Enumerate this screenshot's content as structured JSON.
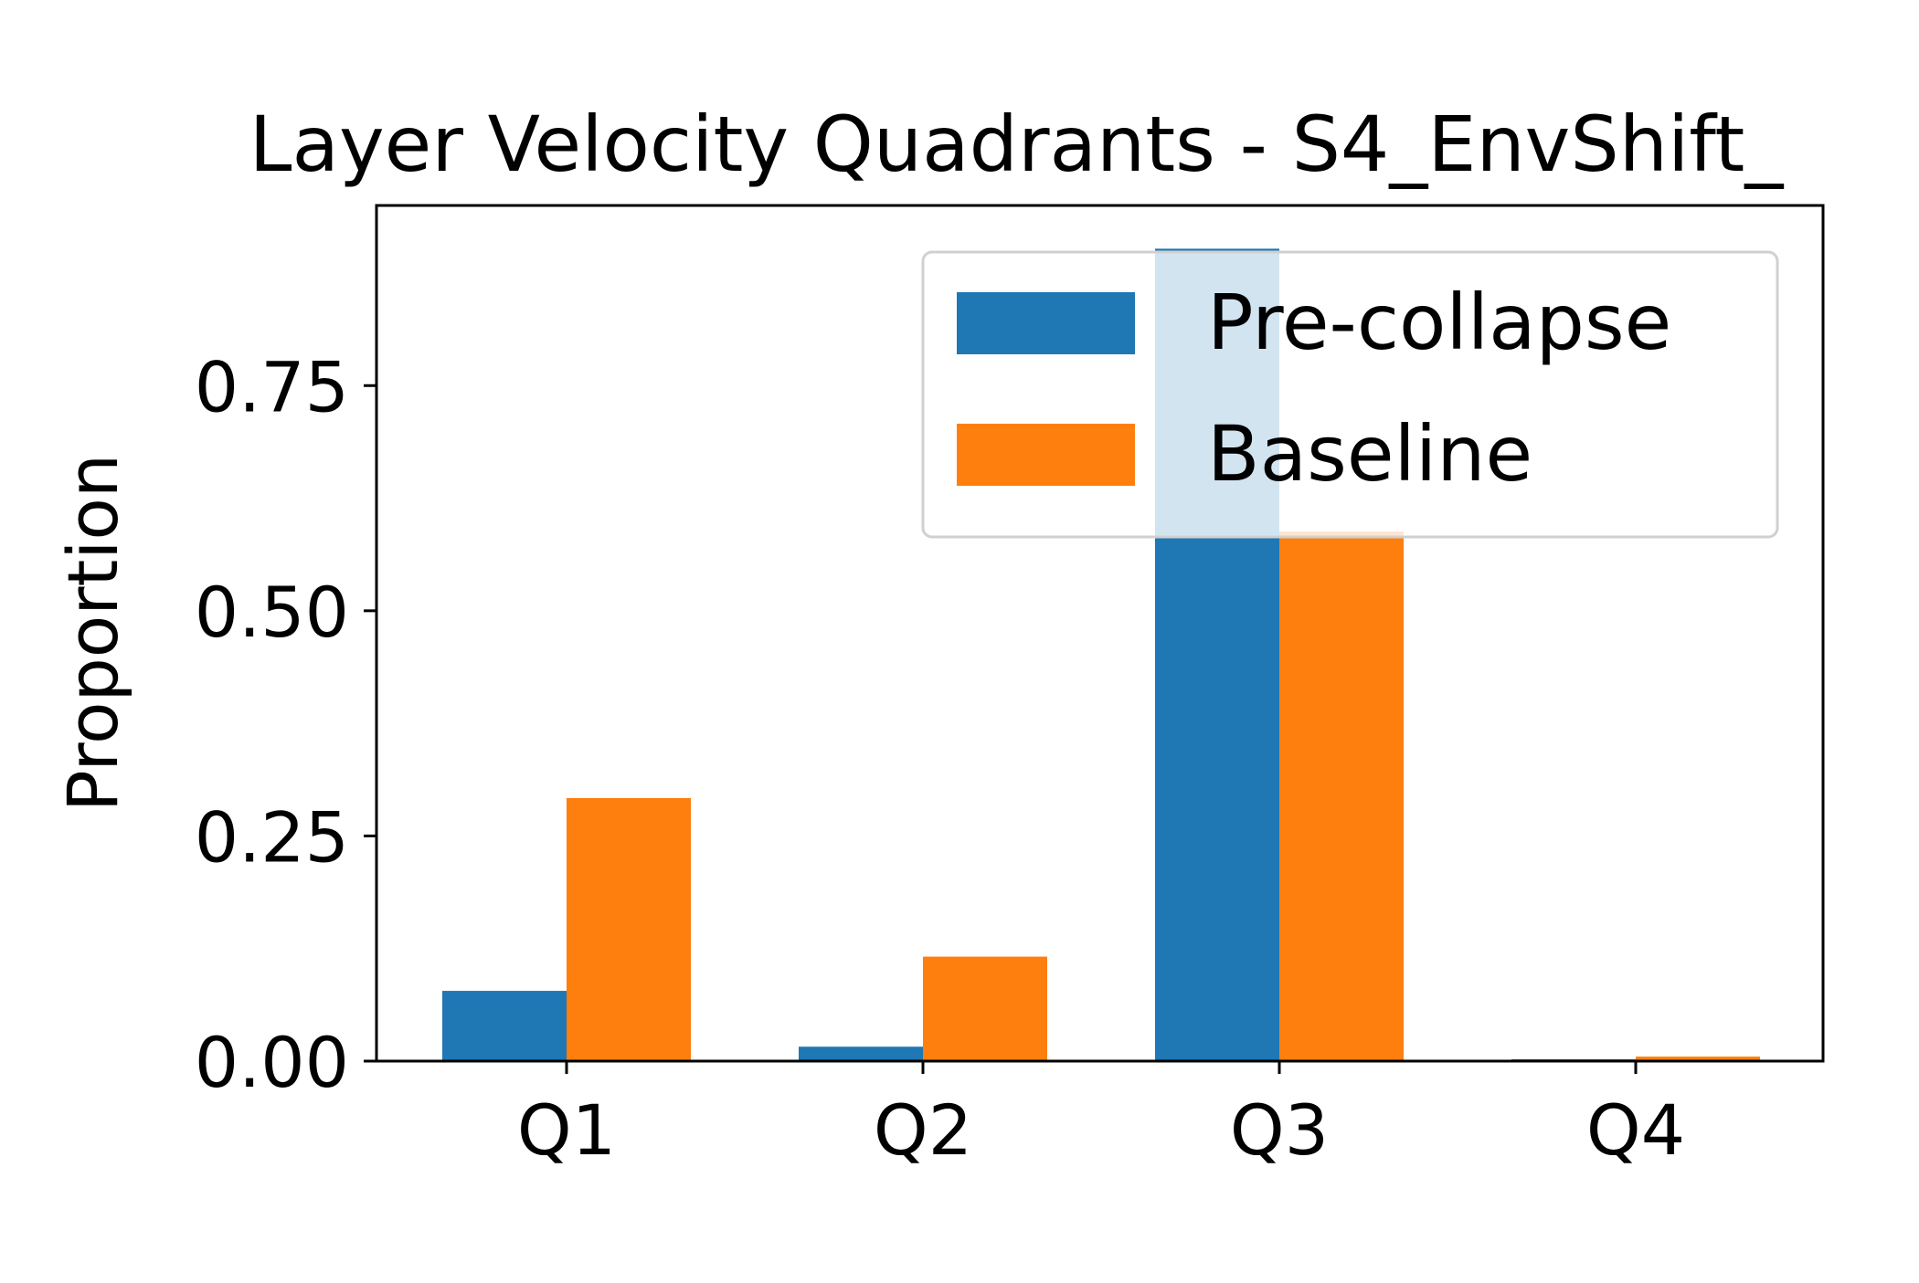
{
  "chart_data": {
    "type": "bar",
    "title": "Layer Velocity Quadrants - S4_EnvShift_",
    "xlabel": "",
    "ylabel": "Proportion",
    "categories": [
      "Q1",
      "Q2",
      "Q3",
      "Q4"
    ],
    "series": [
      {
        "name": "Pre-collapse",
        "color": "#1f77b4",
        "values": [
          0.078,
          0.016,
          0.902,
          0.002
        ]
      },
      {
        "name": "Baseline",
        "color": "#ff7f0e",
        "values": [
          0.292,
          0.116,
          0.588,
          0.005
        ]
      }
    ],
    "ylim": [
      0,
      0.95
    ],
    "yticks": [
      "0.00",
      "0.25",
      "0.50",
      "0.75"
    ],
    "legend_position": "top-right",
    "grid": false
  }
}
